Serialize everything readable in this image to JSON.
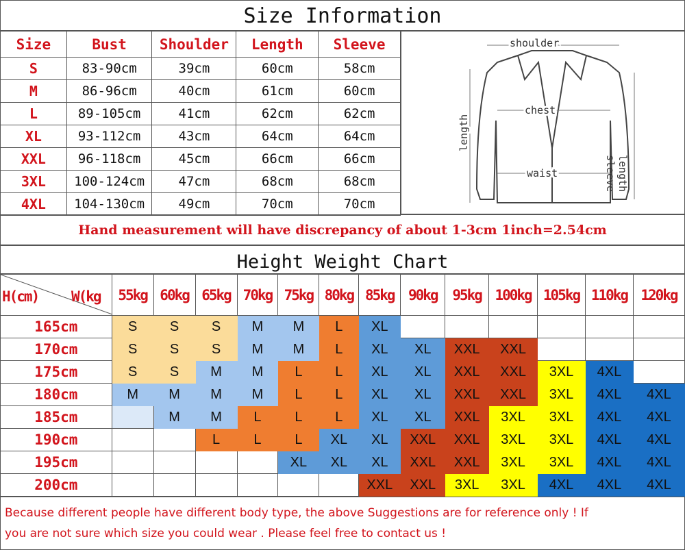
{
  "size_info": {
    "title": "Size Information",
    "headers": [
      "Size",
      "Bust",
      "Shoulder",
      "Length",
      "Sleeve"
    ],
    "rows": [
      [
        "S",
        "83-90cm",
        "39cm",
        "60cm",
        "58cm"
      ],
      [
        "M",
        "86-96cm",
        "40cm",
        "61cm",
        "60cm"
      ],
      [
        "L",
        "89-105cm",
        "41cm",
        "62cm",
        "62cm"
      ],
      [
        "XL",
        "93-112cm",
        "43cm",
        "64cm",
        "64cm"
      ],
      [
        "XXL",
        "96-118cm",
        "45cm",
        "66cm",
        "66cm"
      ],
      [
        "3XL",
        "100-124cm",
        "47cm",
        "68cm",
        "68cm"
      ],
      [
        "4XL",
        "104-130cm",
        "49cm",
        "70cm",
        "70cm"
      ]
    ]
  },
  "diagram": {
    "shoulder": "shoulder",
    "chest": "chest",
    "waist": "waist",
    "length": "length",
    "sleeve": "sleeve",
    "sleeve_length": "length"
  },
  "note": "Hand measurement will have discrepancy of about 1-3cm  1inch=2.54cm",
  "hw_chart": {
    "title": "Height Weight Chart",
    "corner_h": "H(cm)",
    "corner_w": "W(kg",
    "weights": [
      "55kg",
      "60kg",
      "65kg",
      "70kg",
      "75kg",
      "80kg",
      "85kg",
      "90kg",
      "95kg",
      "100kg",
      "105kg",
      "110kg",
      "120kg"
    ],
    "rows": [
      {
        "height": "165cm",
        "sizes": [
          "S",
          "S",
          "S",
          "M",
          "M",
          "L",
          "XL",
          "",
          "",
          "",
          "",
          "",
          ""
        ]
      },
      {
        "height": "170cm",
        "sizes": [
          "S",
          "S",
          "S",
          "M",
          "M",
          "L",
          "XL",
          "XL",
          "XXL",
          "XXL",
          "",
          "",
          ""
        ]
      },
      {
        "height": "175cm",
        "sizes": [
          "S",
          "S",
          "M",
          "M",
          "L",
          "L",
          "XL",
          "XL",
          "XXL",
          "XXL",
          "3XL",
          "4XL",
          ""
        ]
      },
      {
        "height": "180cm",
        "sizes": [
          "M",
          "M",
          "M",
          "M",
          "L",
          "L",
          "XL",
          "XL",
          "XXL",
          "XXL",
          "3XL",
          "4XL",
          "4XL"
        ]
      },
      {
        "height": "185cm",
        "sizes": [
          "",
          "M",
          "M",
          "L",
          "L",
          "L",
          "XL",
          "XL",
          "XXL",
          "3XL",
          "3XL",
          "4XL",
          "4XL"
        ]
      },
      {
        "height": "190cm",
        "sizes": [
          "",
          "",
          "L",
          "L",
          "L",
          "XL",
          "XL",
          "XXL",
          "XXL",
          "3XL",
          "3XL",
          "4XL",
          "4XL"
        ]
      },
      {
        "height": "195cm",
        "sizes": [
          "",
          "",
          "",
          "",
          "XL",
          "XL",
          "XL",
          "XXL",
          "XXL",
          "3XL",
          "3XL",
          "4XL",
          "4XL"
        ]
      },
      {
        "height": "200cm",
        "sizes": [
          "",
          "",
          "",
          "",
          "",
          "",
          "XXL",
          "XXL",
          "3XL",
          "3XL",
          "4XL",
          "4XL",
          "4XL"
        ]
      }
    ],
    "colors": {
      "S": "#fbdc9a",
      "M": "#a3c6ee",
      "L": "#ef7d30",
      "XL": "#5e9bd8",
      "XXL": "#c9421c",
      "3XL": "#ffff00",
      "4XL": "#1a6fc4",
      "blank_185_55": "#dce9f8"
    }
  },
  "footer": {
    "line1": "Because different people have different body type, the above Suggestions are for reference only ! If",
    "line2": "you are not sure which size you could wear . Please feel free to contact us !"
  }
}
